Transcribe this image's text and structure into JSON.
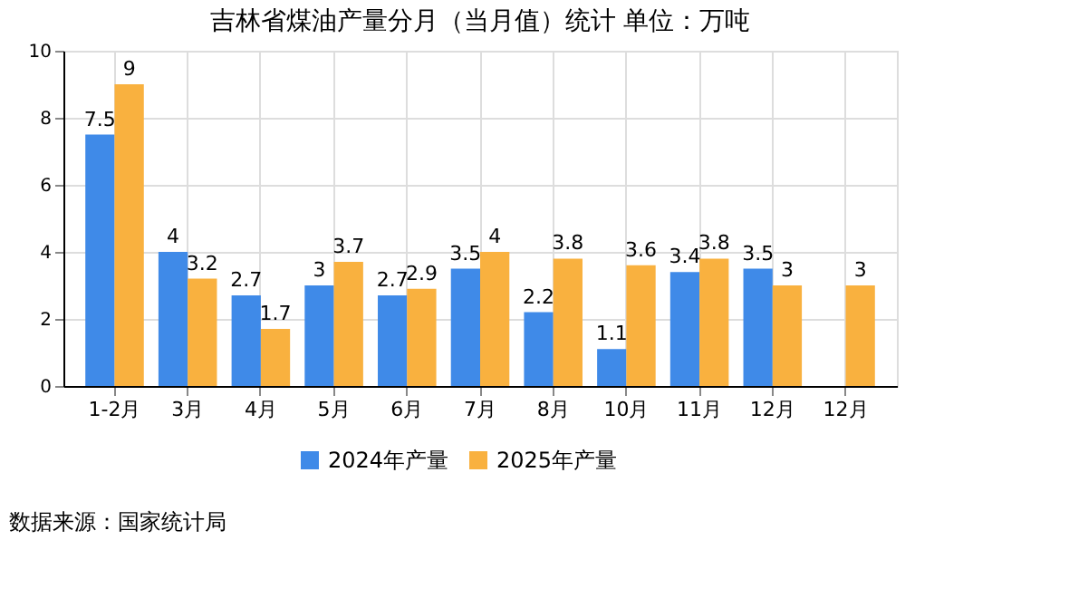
{
  "chart_data": {
    "type": "bar",
    "title": "吉林省煤油产量分月（当月值）统计 单位：万吨",
    "categories": [
      "1-2月",
      "3月",
      "4月",
      "5月",
      "6月",
      "7月",
      "8月",
      "10月",
      "11月",
      "12月",
      "12月"
    ],
    "series": [
      {
        "name": "2024年产量",
        "color": "#3f8ae8",
        "values": [
          7.5,
          4,
          2.7,
          3,
          2.7,
          3.5,
          2.2,
          1.1,
          3.4,
          3.5,
          null
        ]
      },
      {
        "name": "2025年产量",
        "color": "#f9b13f",
        "values": [
          9,
          3.2,
          1.7,
          3.7,
          2.9,
          4,
          3.8,
          3.6,
          3.8,
          3,
          3
        ]
      }
    ],
    "ylim": [
      0,
      10
    ],
    "yticks": [
      0,
      2,
      4,
      6,
      8,
      10
    ],
    "grid": true,
    "legend": "bottom",
    "data_labels": true,
    "annotations": [
      "数据来源：国家统计局"
    ]
  }
}
